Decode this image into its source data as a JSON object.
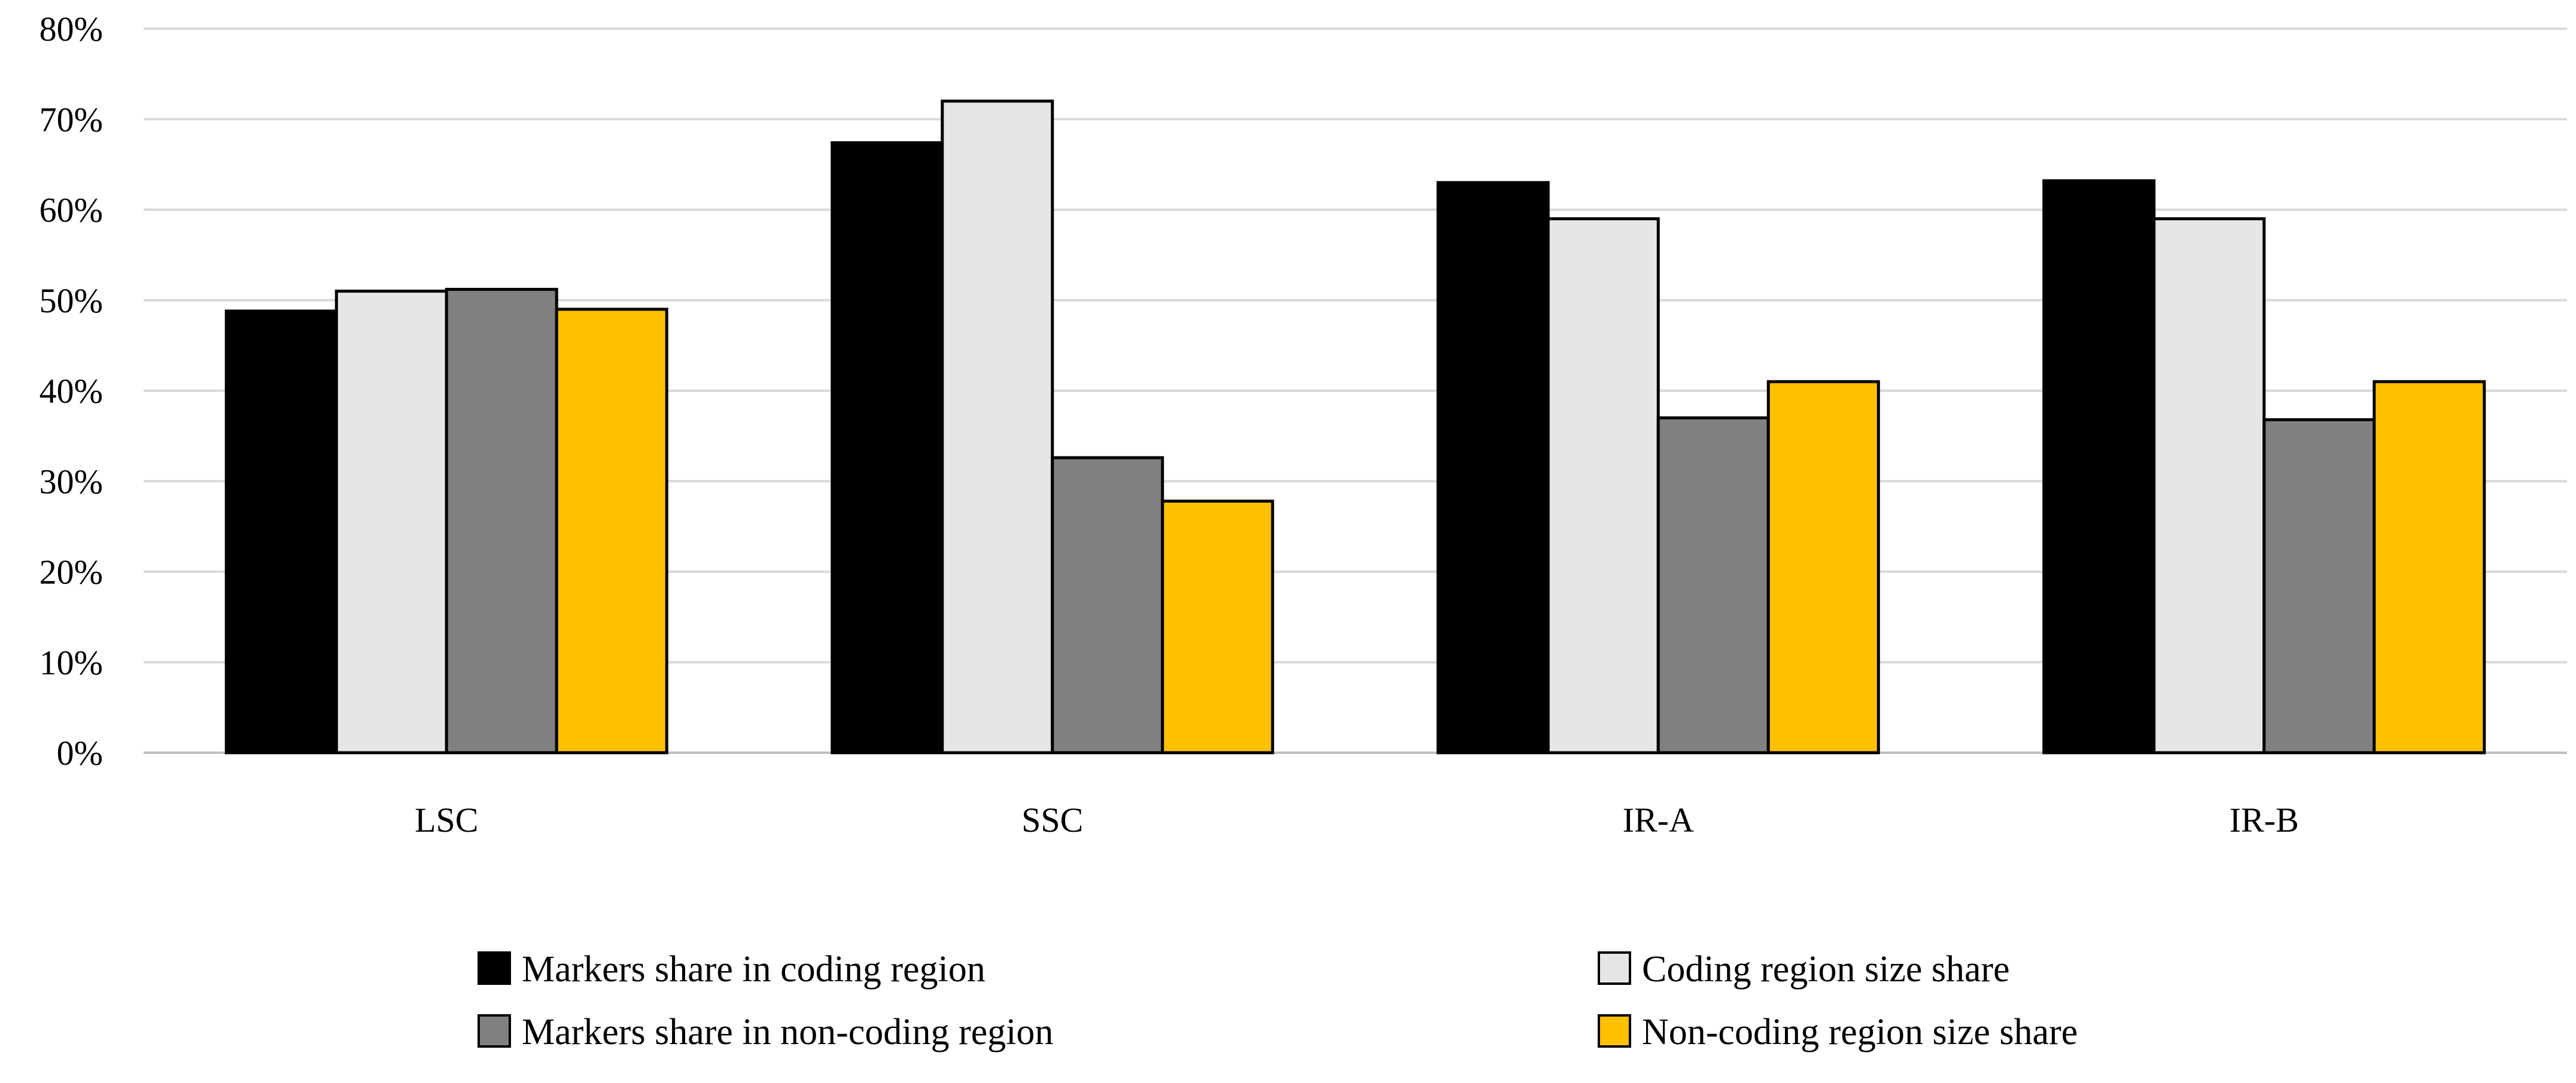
{
  "chart_data": {
    "type": "bar",
    "title": "",
    "xlabel": "",
    "ylabel": "",
    "categories": [
      "LSC",
      "SSC",
      "IR-A",
      "IR-B"
    ],
    "series": [
      {
        "name": "Markers share in coding region",
        "values": [
          48.8,
          67.4,
          63.0,
          63.2
        ],
        "color": "#000000"
      },
      {
        "name": "Coding region size share",
        "values": [
          51.0,
          72.0,
          59.0,
          59.0
        ],
        "color": "#e6e6e6"
      },
      {
        "name": "Markers share in non-coding region",
        "values": [
          51.2,
          32.6,
          37.0,
          36.8
        ],
        "color": "#808080"
      },
      {
        "name": "Non-coding region size share",
        "values": [
          49.0,
          27.8,
          41.0,
          41.0
        ],
        "color": "#ffc000"
      }
    ],
    "ylim": [
      0,
      80
    ],
    "yticks": [
      "0%",
      "10%",
      "20%",
      "30%",
      "40%",
      "50%",
      "60%",
      "70%",
      "80%"
    ],
    "grid": true,
    "legend_position": "bottom"
  }
}
